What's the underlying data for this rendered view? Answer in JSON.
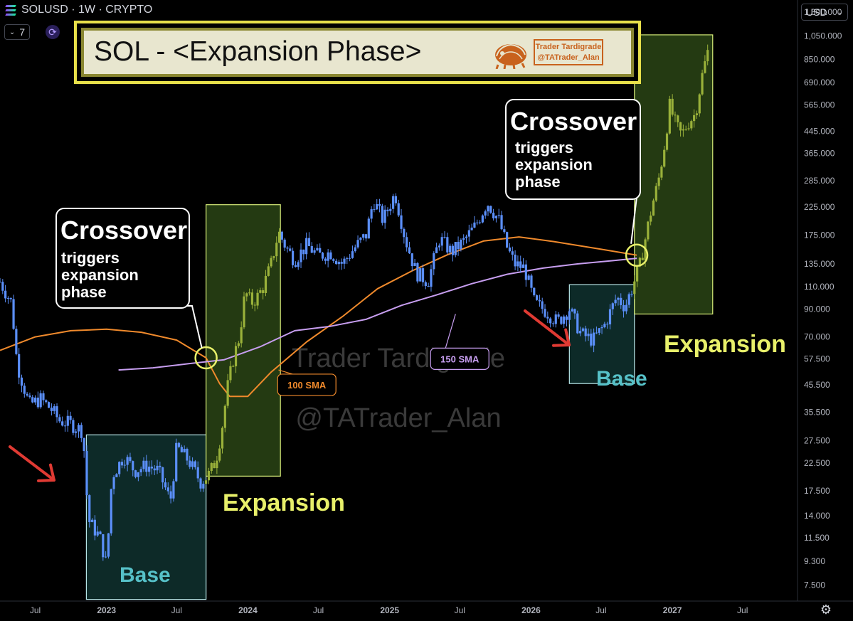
{
  "header": {
    "symbol": "SOLUSD · 1W · CRYPTO",
    "interval_badge": "7",
    "currency": "USD"
  },
  "title": {
    "main": "SOL - <Expansion Phase>",
    "author_name": "Trader Tardigrade",
    "author_handle": "@TATrader_Alan"
  },
  "watermark": {
    "line1": "Trader Tardigrade",
    "line2": "@TATrader_Alan"
  },
  "callouts": [
    {
      "title": "Crossover",
      "lines": [
        "triggers",
        "expansion",
        "phase"
      ]
    },
    {
      "title": "Crossover",
      "lines": [
        "triggers",
        "expansion",
        "phase"
      ]
    }
  ],
  "zone_labels": {
    "base_1": "Base",
    "expansion_1": "Expansion",
    "base_2": "Base",
    "expansion_2": "Expansion"
  },
  "colors": {
    "candle_blue": "#5b8ff9",
    "candle_green": "#9ab13a",
    "sma100": "#f08a2c",
    "sma150": "#c79ef0",
    "base_zone": "#0d2a28",
    "expansion_zone": "#243a12",
    "label_yellow": "#e8f06a",
    "label_cyan": "#56c1c8",
    "arrow_red": "#e03a33"
  },
  "chart_data": {
    "type": "candlestick",
    "y_scale": "log",
    "ylim": [
      6.5,
      1450
    ],
    "x_range": [
      "2022-04-01",
      "2027-11-20"
    ],
    "y_ticks": [
      "1,300.000",
      "1,050.000",
      "850.000",
      "690.000",
      "565.000",
      "445.000",
      "365.000",
      "285.000",
      "225.000",
      "175.000",
      "135.000",
      "110.000",
      "90.000",
      "70.000",
      "57.500",
      "45.500",
      "35.500",
      "27.500",
      "22.500",
      "17.500",
      "14.000",
      "11.500",
      "9.300",
      "7.500"
    ],
    "x_ticks": [
      "Jul",
      "2023",
      "Jul",
      "2024",
      "Jul",
      "2025",
      "Jul",
      "2026",
      "Jul",
      "2027",
      "Jul"
    ],
    "x_tick_dates": [
      "2022-07-01",
      "2023-01-01",
      "2023-07-01",
      "2024-01-01",
      "2024-07-01",
      "2025-01-01",
      "2025-07-01",
      "2026-01-01",
      "2026-07-01",
      "2027-01-01",
      "2027-07-01"
    ],
    "series": [
      {
        "name": "SOLUSD",
        "kind": "price",
        "points": [
          [
            "2022-04-01",
            115
          ],
          [
            "2022-05-01",
            95
          ],
          [
            "2022-05-15",
            55
          ],
          [
            "2022-06-15",
            38
          ],
          [
            "2022-07-15",
            40
          ],
          [
            "2022-08-15",
            36
          ],
          [
            "2022-09-01",
            33
          ],
          [
            "2022-10-01",
            32
          ],
          [
            "2022-11-01",
            30
          ],
          [
            "2022-11-15",
            13.5
          ],
          [
            "2022-12-15",
            11.5
          ],
          [
            "2023-01-01",
            9.0
          ],
          [
            "2023-01-15",
            20
          ],
          [
            "2023-02-15",
            24
          ],
          [
            "2023-03-15",
            21
          ],
          [
            "2023-04-15",
            22
          ],
          [
            "2023-05-15",
            21
          ],
          [
            "2023-06-15",
            16
          ],
          [
            "2023-07-01",
            26
          ],
          [
            "2023-08-01",
            23
          ],
          [
            "2023-09-01",
            19
          ],
          [
            "2023-09-20",
            20
          ],
          [
            "2023-10-10",
            23
          ],
          [
            "2023-10-25",
            30
          ],
          [
            "2023-11-10",
            45
          ],
          [
            "2023-11-25",
            58
          ],
          [
            "2023-12-10",
            70
          ],
          [
            "2023-12-25",
            105
          ],
          [
            "2024-01-10",
            95
          ],
          [
            "2024-01-25",
            100
          ],
          [
            "2024-02-10",
            110
          ],
          [
            "2024-03-01",
            135
          ],
          [
            "2024-03-20",
            180
          ],
          [
            "2024-04-10",
            155
          ],
          [
            "2024-05-01",
            140
          ],
          [
            "2024-06-01",
            160
          ],
          [
            "2024-07-01",
            145
          ],
          [
            "2024-08-01",
            150
          ],
          [
            "2024-09-01",
            135
          ],
          [
            "2024-10-01",
            155
          ],
          [
            "2024-11-01",
            175
          ],
          [
            "2024-11-20",
            240
          ],
          [
            "2024-12-15",
            200
          ],
          [
            "2025-01-15",
            255
          ],
          [
            "2025-02-10",
            170
          ],
          [
            "2025-03-10",
            125
          ],
          [
            "2025-04-10",
            115
          ],
          [
            "2025-05-10",
            170
          ],
          [
            "2025-06-10",
            150
          ],
          [
            "2025-07-10",
            165
          ],
          [
            "2025-08-10",
            190
          ],
          [
            "2025-09-10",
            235
          ],
          [
            "2025-10-10",
            200
          ],
          [
            "2025-11-01",
            155
          ],
          [
            "2025-11-20",
            135
          ],
          [
            "2025-12-15",
            130
          ],
          [
            "2026-01-10",
            95
          ],
          [
            "2026-02-10",
            88
          ],
          [
            "2026-03-10",
            80
          ],
          [
            "2026-04-10",
            90
          ],
          [
            "2026-05-10",
            72
          ],
          [
            "2026-06-10",
            68
          ],
          [
            "2026-07-10",
            78
          ],
          [
            "2026-08-10",
            100
          ],
          [
            "2026-09-01",
            92
          ],
          [
            "2026-09-20",
            110
          ],
          [
            "2026-10-10",
            135
          ],
          [
            "2026-10-25",
            175
          ],
          [
            "2026-11-10",
            230
          ],
          [
            "2026-11-25",
            280
          ],
          [
            "2026-12-10",
            380
          ],
          [
            "2026-12-25",
            560
          ],
          [
            "2027-01-10",
            470
          ],
          [
            "2027-01-25",
            430
          ],
          [
            "2027-02-10",
            480
          ],
          [
            "2027-03-01",
            520
          ],
          [
            "2027-03-20",
            750
          ],
          [
            "2027-04-05",
            950
          ]
        ]
      },
      {
        "name": "100 SMA",
        "kind": "line",
        "points": [
          [
            "2022-04-01",
            62
          ],
          [
            "2022-07-01",
            70
          ],
          [
            "2022-10-01",
            74
          ],
          [
            "2023-01-01",
            75
          ],
          [
            "2023-04-01",
            73
          ],
          [
            "2023-07-01",
            68
          ],
          [
            "2023-09-15",
            58
          ],
          [
            "2023-10-20",
            46
          ],
          [
            "2023-11-15",
            41
          ],
          [
            "2024-01-01",
            41
          ],
          [
            "2024-03-01",
            51
          ],
          [
            "2024-06-01",
            67
          ],
          [
            "2024-09-01",
            84
          ],
          [
            "2024-12-01",
            108
          ],
          [
            "2025-03-01",
            127
          ],
          [
            "2025-06-01",
            147
          ],
          [
            "2025-09-01",
            166
          ],
          [
            "2025-12-01",
            172
          ],
          [
            "2026-03-01",
            165
          ],
          [
            "2026-07-01",
            154
          ],
          [
            "2026-10-01",
            146
          ]
        ]
      },
      {
        "name": "150 SMA",
        "kind": "line",
        "points": [
          [
            "2023-02-01",
            52
          ],
          [
            "2023-05-01",
            53
          ],
          [
            "2023-08-01",
            55
          ],
          [
            "2023-11-01",
            57
          ],
          [
            "2024-02-01",
            64
          ],
          [
            "2024-05-01",
            74
          ],
          [
            "2024-08-01",
            77
          ],
          [
            "2024-11-01",
            82
          ],
          [
            "2025-02-01",
            93
          ],
          [
            "2025-05-01",
            102
          ],
          [
            "2025-08-01",
            113
          ],
          [
            "2025-11-01",
            123
          ],
          [
            "2026-02-01",
            130
          ],
          [
            "2026-05-01",
            135
          ],
          [
            "2026-08-01",
            139
          ],
          [
            "2026-10-01",
            142
          ]
        ]
      }
    ],
    "annotations": [
      {
        "text": "100 SMA",
        "x": "2024-06-01",
        "y": 45.5
      },
      {
        "text": "150 SMA",
        "x": "2025-07-01",
        "y": 57.5
      },
      {
        "text": "Crossover",
        "x": "2023-09-15",
        "y": 58
      },
      {
        "text": "Crossover",
        "x": "2026-10-01",
        "y": 146
      }
    ],
    "zones": [
      {
        "label": "Base",
        "x0": "2022-11-10",
        "x1": "2023-09-15",
        "y0": 6.6,
        "y1": 29
      },
      {
        "label": "Expansion",
        "x0": "2023-09-15",
        "x1": "2024-03-25",
        "y0": 20,
        "y1": 230
      },
      {
        "label": "Base",
        "x0": "2026-04-10",
        "x1": "2026-09-25",
        "y0": 46,
        "y1": 112
      },
      {
        "label": "Expansion",
        "x0": "2026-09-25",
        "x1": "2027-04-15",
        "y0": 86,
        "y1": 1060
      }
    ],
    "grid": false
  }
}
